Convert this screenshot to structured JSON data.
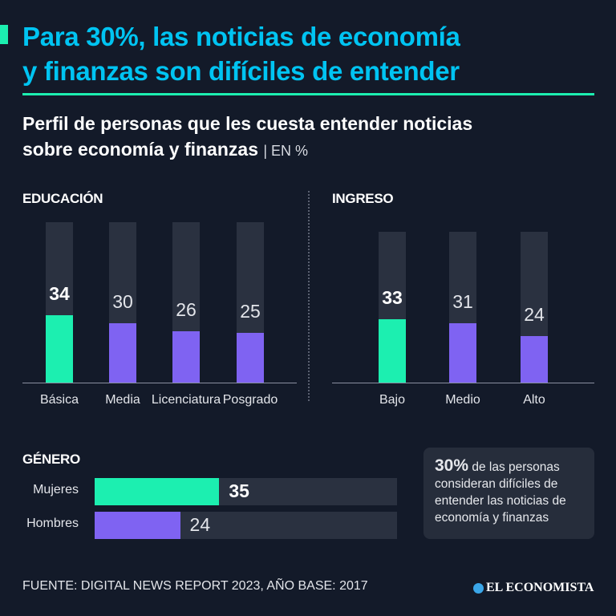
{
  "header": {
    "title_line1": "Para 30%, las noticias de economía",
    "title_line2": "y finanzas son difíciles de entender",
    "subtitle_line1": "Perfil de personas que les cuesta entender noticias",
    "subtitle_line2": "sobre economía y finanzas",
    "unit": "| EN %"
  },
  "colors": {
    "highlight": "#1cefb0",
    "default": "#7f63f2",
    "track": "#2a3140",
    "title": "#00c4f2"
  },
  "chart_data": [
    {
      "type": "bar",
      "title": "EDUCACIÓN",
      "categories": [
        "Básica",
        "Media",
        "Licenciatura",
        "Posgrado"
      ],
      "values": [
        34,
        30,
        26,
        25
      ],
      "highlight": 0
    },
    {
      "type": "bar",
      "title": "INGRESO",
      "categories": [
        "Bajo",
        "Medio",
        "Alto"
      ],
      "values": [
        33,
        31,
        24
      ],
      "highlight": 0
    },
    {
      "type": "bar",
      "orientation": "horizontal",
      "title": "GÉNERO",
      "categories": [
        "Mujeres",
        "Hombres"
      ],
      "values": [
        35,
        24
      ],
      "highlight": 0
    }
  ],
  "callout": {
    "big": "30%",
    "text": " de las personas consideran difíciles de entender las noticias de economía y finanzas"
  },
  "footer": {
    "source": "FUENTE: DIGITAL NEWS REPORT 2023, AÑO BASE: 2017",
    "logo": "EL ECONOMISTA"
  }
}
